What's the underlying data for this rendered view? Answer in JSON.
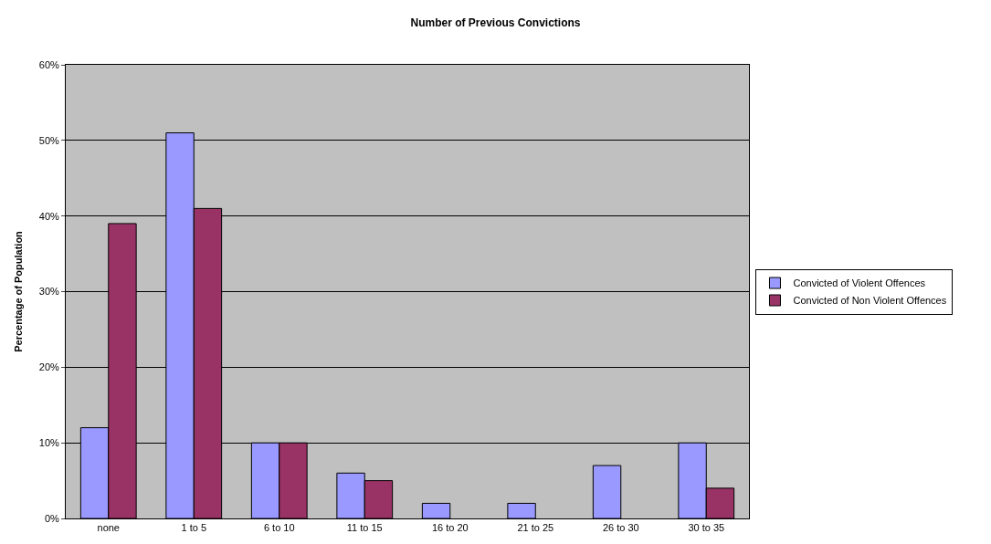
{
  "chart_data": {
    "type": "bar",
    "title": "Number of Previous Convictions",
    "ylabel": "Percentage of Population",
    "categories": [
      "none",
      "1 to 5",
      "6 to 10",
      "11 to 15",
      "16 to 20",
      "21 to 25",
      "26 to 30",
      "30 to 35"
    ],
    "series": [
      {
        "name": "Convicted of Violent Offences",
        "color": "#9999ff",
        "values": [
          12,
          51,
          10,
          6,
          2,
          2,
          7,
          10
        ]
      },
      {
        "name": "Convicted of Non Violent Offences",
        "color": "#993366",
        "values": [
          39,
          41,
          10,
          5,
          null,
          null,
          null,
          4
        ]
      }
    ],
    "ylim": [
      0,
      60
    ],
    "yticks": [
      {
        "value": 0,
        "label": "0%"
      },
      {
        "value": 10,
        "label": "10%"
      },
      {
        "value": 20,
        "label": "20%"
      },
      {
        "value": 30,
        "label": "30%"
      },
      {
        "value": 40,
        "label": "40%"
      },
      {
        "value": 50,
        "label": "50%"
      },
      {
        "value": 60,
        "label": "60%"
      }
    ],
    "grid": "y",
    "legend": "right"
  }
}
